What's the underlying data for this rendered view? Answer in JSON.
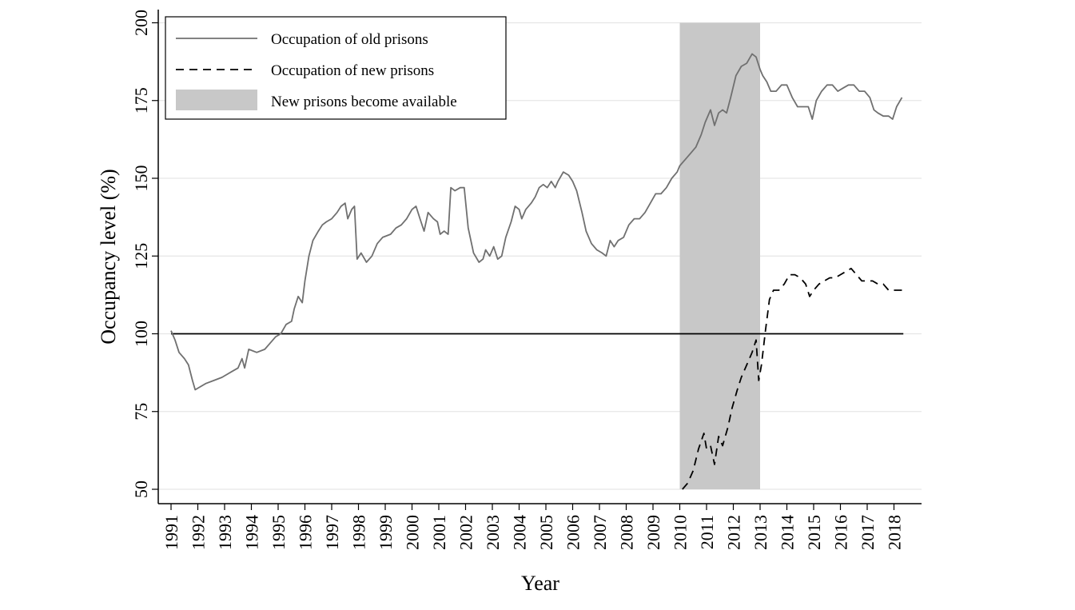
{
  "chart_data": {
    "type": "line",
    "title": "",
    "xlabel": "Year",
    "ylabel": "Occupancy level (%)",
    "xlim": [
      1991,
      2018.6
    ],
    "ylim": [
      50,
      200
    ],
    "x_ticks": [
      "1991",
      "1992",
      "1993",
      "1994",
      "1995",
      "1996",
      "1997",
      "1998",
      "1999",
      "2000",
      "2001",
      "2002",
      "2003",
      "2004",
      "2005",
      "2006",
      "2007",
      "2008",
      "2009",
      "2010",
      "2011",
      "2012",
      "2013",
      "2014",
      "2015",
      "2016",
      "2017",
      "2018"
    ],
    "y_ticks": [
      "50",
      "75",
      "100",
      "125",
      "150",
      "175",
      "200"
    ],
    "grid": "horizontal",
    "legend_position": "top-left",
    "colors": {
      "old_prisons": "#707070",
      "new_prisons": "#000000",
      "shaded_band": "#c8c8c8",
      "reference_line": "#000000",
      "grid": "#e6e6e6"
    },
    "reference_line": {
      "y": 100
    },
    "shaded_region": {
      "label": "New prisons become available",
      "x_start": 2010.0,
      "x_end": 2013.0
    },
    "series": [
      {
        "name": "Occupation of old prisons",
        "style": "solid",
        "points": [
          [
            1991.0,
            101
          ],
          [
            1991.15,
            98
          ],
          [
            1991.3,
            94
          ],
          [
            1991.5,
            92
          ],
          [
            1991.65,
            90
          ],
          [
            1991.8,
            85
          ],
          [
            1991.9,
            82
          ],
          [
            1992.1,
            83
          ],
          [
            1992.3,
            84
          ],
          [
            1992.6,
            85
          ],
          [
            1992.9,
            86
          ],
          [
            1993.1,
            87
          ],
          [
            1993.3,
            88
          ],
          [
            1993.5,
            89
          ],
          [
            1993.65,
            92
          ],
          [
            1993.75,
            89
          ],
          [
            1993.9,
            95
          ],
          [
            1994.2,
            94
          ],
          [
            1994.5,
            95
          ],
          [
            1994.7,
            97
          ],
          [
            1994.9,
            99
          ],
          [
            1995.1,
            100
          ],
          [
            1995.3,
            103
          ],
          [
            1995.5,
            104
          ],
          [
            1995.6,
            108
          ],
          [
            1995.75,
            112
          ],
          [
            1995.9,
            110
          ],
          [
            1996.0,
            117
          ],
          [
            1996.15,
            125
          ],
          [
            1996.3,
            130
          ],
          [
            1996.5,
            133
          ],
          [
            1996.65,
            135
          ],
          [
            1996.8,
            136
          ],
          [
            1997.0,
            137
          ],
          [
            1997.2,
            139
          ],
          [
            1997.35,
            141
          ],
          [
            1997.5,
            142
          ],
          [
            1997.6,
            137
          ],
          [
            1997.75,
            140
          ],
          [
            1997.85,
            141
          ],
          [
            1997.95,
            124
          ],
          [
            1998.1,
            126
          ],
          [
            1998.3,
            123
          ],
          [
            1998.5,
            125
          ],
          [
            1998.7,
            129
          ],
          [
            1998.9,
            131
          ],
          [
            1999.2,
            132
          ],
          [
            1999.4,
            134
          ],
          [
            1999.6,
            135
          ],
          [
            1999.8,
            137
          ],
          [
            2000.0,
            140
          ],
          [
            2000.15,
            141
          ],
          [
            2000.3,
            137
          ],
          [
            2000.45,
            133
          ],
          [
            2000.6,
            139
          ],
          [
            2000.8,
            137
          ],
          [
            2000.95,
            136
          ],
          [
            2001.05,
            132
          ],
          [
            2001.2,
            133
          ],
          [
            2001.35,
            132
          ],
          [
            2001.45,
            147
          ],
          [
            2001.6,
            146
          ],
          [
            2001.8,
            147
          ],
          [
            2001.95,
            147
          ],
          [
            2002.1,
            134
          ],
          [
            2002.3,
            126
          ],
          [
            2002.5,
            123
          ],
          [
            2002.65,
            124
          ],
          [
            2002.75,
            127
          ],
          [
            2002.9,
            125
          ],
          [
            2003.05,
            128
          ],
          [
            2003.2,
            124
          ],
          [
            2003.35,
            125
          ],
          [
            2003.5,
            131
          ],
          [
            2003.7,
            136
          ],
          [
            2003.85,
            141
          ],
          [
            2004.0,
            140
          ],
          [
            2004.1,
            137
          ],
          [
            2004.25,
            140
          ],
          [
            2004.45,
            142
          ],
          [
            2004.6,
            144
          ],
          [
            2004.75,
            147
          ],
          [
            2004.9,
            148
          ],
          [
            2005.05,
            147
          ],
          [
            2005.2,
            149
          ],
          [
            2005.35,
            147
          ],
          [
            2005.45,
            149
          ],
          [
            2005.65,
            152
          ],
          [
            2005.85,
            151
          ],
          [
            2006.0,
            149
          ],
          [
            2006.15,
            146
          ],
          [
            2006.35,
            139
          ],
          [
            2006.5,
            133
          ],
          [
            2006.7,
            129
          ],
          [
            2006.9,
            127
          ],
          [
            2007.1,
            126
          ],
          [
            2007.25,
            125
          ],
          [
            2007.4,
            130
          ],
          [
            2007.55,
            128
          ],
          [
            2007.7,
            130
          ],
          [
            2007.9,
            131
          ],
          [
            2008.1,
            135
          ],
          [
            2008.3,
            137
          ],
          [
            2008.5,
            137
          ],
          [
            2008.7,
            139
          ],
          [
            2008.9,
            142
          ],
          [
            2009.1,
            145
          ],
          [
            2009.3,
            145
          ],
          [
            2009.5,
            147
          ],
          [
            2009.7,
            150
          ],
          [
            2009.9,
            152
          ],
          [
            2010.0,
            154
          ],
          [
            2010.2,
            156
          ],
          [
            2010.4,
            158
          ],
          [
            2010.6,
            160
          ],
          [
            2010.8,
            164
          ],
          [
            2010.95,
            168
          ],
          [
            2011.15,
            172
          ],
          [
            2011.3,
            167
          ],
          [
            2011.45,
            171
          ],
          [
            2011.6,
            172
          ],
          [
            2011.75,
            171
          ],
          [
            2011.9,
            176
          ],
          [
            2012.1,
            183
          ],
          [
            2012.3,
            186
          ],
          [
            2012.5,
            187
          ],
          [
            2012.7,
            190
          ],
          [
            2012.85,
            189
          ],
          [
            2013.0,
            185
          ],
          [
            2013.1,
            183
          ],
          [
            2013.25,
            181
          ],
          [
            2013.4,
            178
          ],
          [
            2013.6,
            178
          ],
          [
            2013.8,
            180
          ],
          [
            2014.0,
            180
          ],
          [
            2014.2,
            176
          ],
          [
            2014.4,
            173
          ],
          [
            2014.6,
            173
          ],
          [
            2014.8,
            173
          ],
          [
            2014.95,
            169
          ],
          [
            2015.1,
            175
          ],
          [
            2015.3,
            178
          ],
          [
            2015.5,
            180
          ],
          [
            2015.7,
            180
          ],
          [
            2015.9,
            178
          ],
          [
            2016.1,
            179
          ],
          [
            2016.3,
            180
          ],
          [
            2016.5,
            180
          ],
          [
            2016.7,
            178
          ],
          [
            2016.9,
            178
          ],
          [
            2017.1,
            176
          ],
          [
            2017.25,
            172
          ],
          [
            2017.4,
            171
          ],
          [
            2017.6,
            170
          ],
          [
            2017.8,
            170
          ],
          [
            2017.95,
            169
          ],
          [
            2018.1,
            173
          ],
          [
            2018.3,
            176
          ]
        ]
      },
      {
        "name": "Occupation of new prisons",
        "style": "dashed",
        "points": [
          [
            2010.1,
            50
          ],
          [
            2010.3,
            52
          ],
          [
            2010.5,
            56
          ],
          [
            2010.7,
            63
          ],
          [
            2010.9,
            68
          ],
          [
            2011.0,
            63
          ],
          [
            2011.15,
            64
          ],
          [
            2011.3,
            58
          ],
          [
            2011.45,
            67
          ],
          [
            2011.6,
            64
          ],
          [
            2011.8,
            70
          ],
          [
            2011.95,
            76
          ],
          [
            2012.15,
            82
          ],
          [
            2012.3,
            86
          ],
          [
            2012.5,
            90
          ],
          [
            2012.7,
            94
          ],
          [
            2012.85,
            98
          ],
          [
            2012.95,
            85
          ],
          [
            2013.05,
            90
          ],
          [
            2013.2,
            101
          ],
          [
            2013.35,
            111
          ],
          [
            2013.5,
            114
          ],
          [
            2013.7,
            114
          ],
          [
            2013.9,
            116
          ],
          [
            2014.1,
            119
          ],
          [
            2014.3,
            119
          ],
          [
            2014.5,
            118
          ],
          [
            2014.7,
            116
          ],
          [
            2014.85,
            112
          ],
          [
            2015.0,
            114
          ],
          [
            2015.2,
            116
          ],
          [
            2015.4,
            117
          ],
          [
            2015.6,
            118
          ],
          [
            2015.8,
            118
          ],
          [
            2016.0,
            119
          ],
          [
            2016.2,
            120
          ],
          [
            2016.4,
            121
          ],
          [
            2016.6,
            119
          ],
          [
            2016.8,
            117
          ],
          [
            2017.0,
            117
          ],
          [
            2017.2,
            117
          ],
          [
            2017.4,
            116
          ],
          [
            2017.6,
            116
          ],
          [
            2017.8,
            114
          ],
          [
            2018.0,
            114
          ],
          [
            2018.3,
            114
          ]
        ]
      }
    ],
    "legend": [
      {
        "label": "Occupation of old prisons",
        "kind": "solid-line"
      },
      {
        "label": "Occupation of new prisons",
        "kind": "dashed-line"
      },
      {
        "label": "New prisons become available",
        "kind": "shaded-box"
      }
    ]
  }
}
